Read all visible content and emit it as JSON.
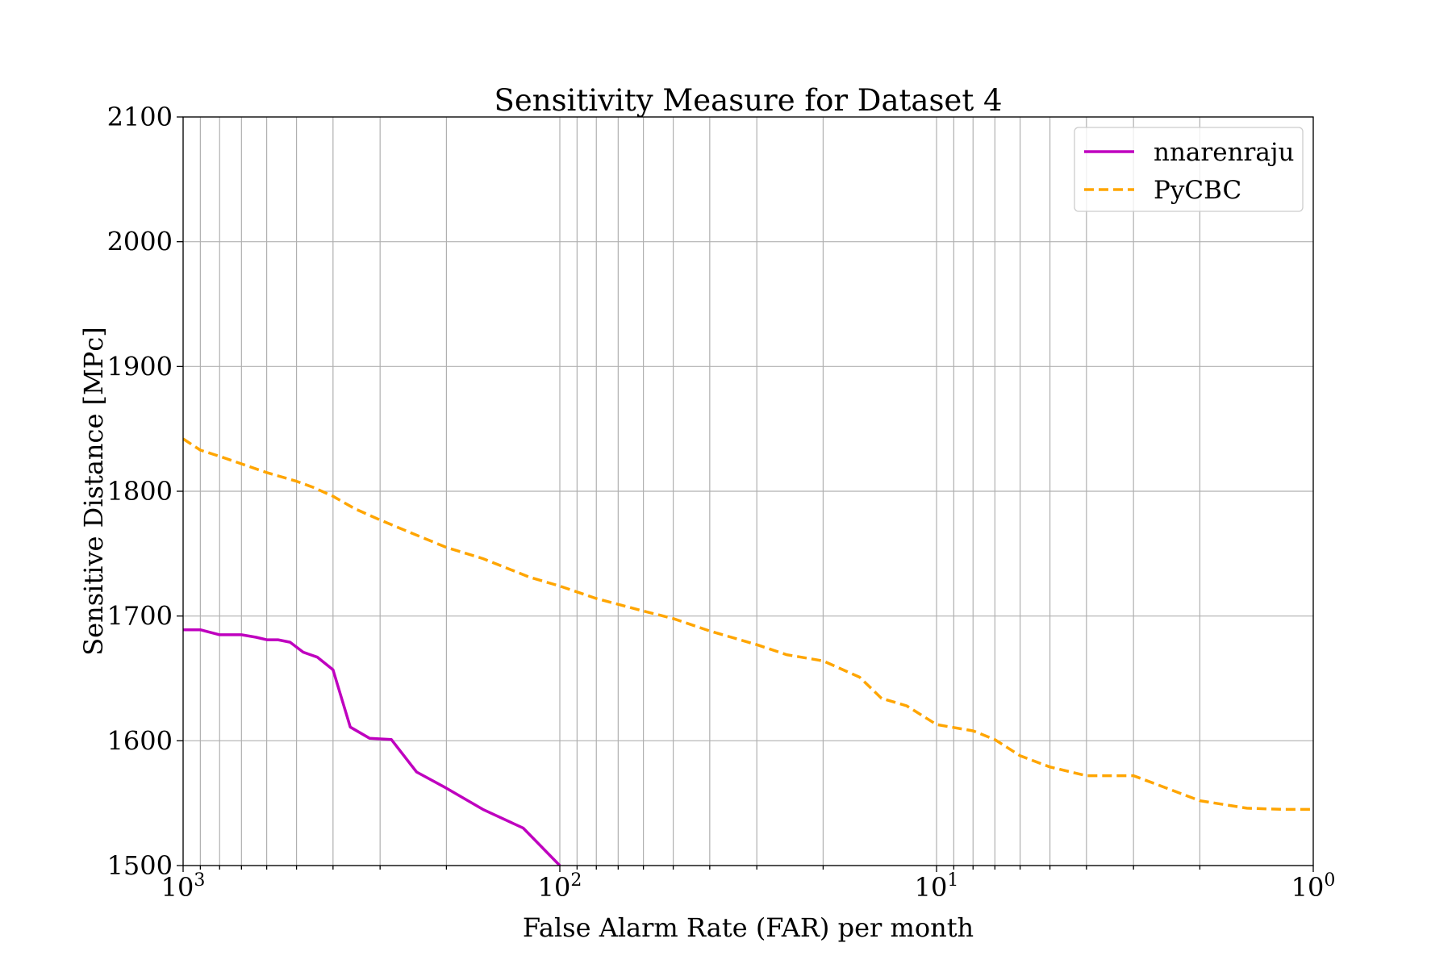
{
  "chart_data": {
    "type": "line",
    "title": "Sensitivity Measure for Dataset 4",
    "xlabel": "False Alarm Rate (FAR) per month",
    "ylabel": "Sensitive Distance [MPc]",
    "xscale": "log",
    "x_inverted": true,
    "xlim": [
      1000,
      1
    ],
    "ylim": [
      1500,
      2100
    ],
    "grid": "major and minor on x, major on y",
    "legend_position": "top-right",
    "x_ticks": [
      {
        "value": 1000,
        "base": "10",
        "exp": "3"
      },
      {
        "value": 100,
        "base": "10",
        "exp": "2"
      },
      {
        "value": 10,
        "base": "10",
        "exp": "1"
      },
      {
        "value": 1,
        "base": "10",
        "exp": "0"
      }
    ],
    "y_ticks": [
      "1500",
      "1600",
      "1700",
      "1800",
      "1900",
      "2000",
      "2100"
    ],
    "series": [
      {
        "name": "nnarenraju",
        "color": "#bf00bf",
        "style": "solid",
        "x": [
          1000,
          900,
          800,
          700,
          640,
          600,
          560,
          520,
          480,
          440,
          400,
          360,
          320,
          280,
          240,
          200,
          160,
          125,
          100
        ],
        "y": [
          1689,
          1689,
          1685,
          1685,
          1683,
          1681,
          1681,
          1679,
          1671,
          1667,
          1657,
          1611,
          1602,
          1601,
          1575,
          1562,
          1545,
          1530,
          1500
        ]
      },
      {
        "name": "PyCBC",
        "color": "#ffa500",
        "style": "dashed",
        "x": [
          1000,
          900,
          800,
          700,
          600,
          500,
          450,
          400,
          350,
          300,
          250,
          200,
          160,
          120,
          100,
          80,
          60,
          50,
          40,
          30,
          25,
          20,
          16,
          14,
          12,
          10,
          8,
          7,
          6,
          5,
          4,
          3,
          2,
          1.5,
          1.2,
          1
        ],
        "y": [
          1842,
          1833,
          1828,
          1822,
          1815,
          1808,
          1803,
          1796,
          1786,
          1777,
          1767,
          1755,
          1746,
          1731,
          1724,
          1714,
          1704,
          1698,
          1688,
          1677,
          1669,
          1664,
          1651,
          1634,
          1628,
          1613,
          1608,
          1601,
          1588,
          1579,
          1572,
          1572,
          1552,
          1546,
          1545,
          1545
        ]
      }
    ]
  }
}
